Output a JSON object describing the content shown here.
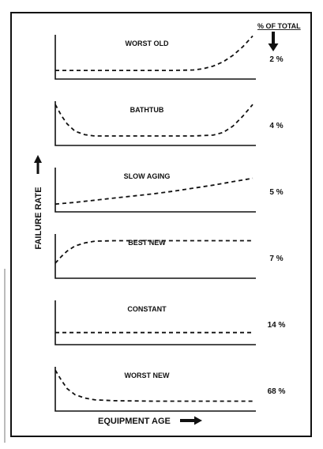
{
  "figure": {
    "ylabel": "FAILURE RATE",
    "xlabel": "EQUIPMENT AGE",
    "pct_header": "% OF TOTAL"
  },
  "chart_data": [
    {
      "type": "line",
      "title": "WORST OLD",
      "percent_label": "2 %",
      "percent_of_total": 2,
      "x": [
        0,
        10,
        20,
        30,
        40,
        50,
        60,
        70,
        75,
        80,
        85,
        90,
        95,
        100
      ],
      "y": [
        0.2,
        0.2,
        0.2,
        0.2,
        0.2,
        0.2,
        0.2,
        0.21,
        0.24,
        0.3,
        0.4,
        0.55,
        0.75,
        1.0
      ],
      "xlim": [
        0,
        100
      ],
      "ylim": [
        0,
        1.1
      ]
    },
    {
      "type": "line",
      "title": "BATHTUB",
      "percent_label": "4 %",
      "percent_of_total": 4,
      "x": [
        0,
        3,
        6,
        10,
        15,
        20,
        30,
        50,
        70,
        80,
        85,
        90,
        95,
        100
      ],
      "y": [
        0.95,
        0.7,
        0.5,
        0.33,
        0.25,
        0.22,
        0.22,
        0.22,
        0.22,
        0.24,
        0.3,
        0.45,
        0.68,
        0.95
      ],
      "xlim": [
        0,
        100
      ],
      "ylim": [
        0,
        1.1
      ]
    },
    {
      "type": "line",
      "title": "SLOW AGING",
      "percent_label": "5 %",
      "percent_of_total": 5,
      "x": [
        0,
        10,
        20,
        30,
        40,
        50,
        60,
        70,
        80,
        90,
        100
      ],
      "y": [
        0.18,
        0.22,
        0.27,
        0.32,
        0.37,
        0.42,
        0.48,
        0.55,
        0.62,
        0.7,
        0.78
      ],
      "xlim": [
        0,
        100
      ],
      "ylim": [
        0,
        1.1
      ]
    },
    {
      "type": "line",
      "title": "BEST NEW",
      "percent_label": "7 %",
      "percent_of_total": 7,
      "x": [
        0,
        3,
        6,
        10,
        15,
        20,
        30,
        50,
        70,
        100
      ],
      "y": [
        0.35,
        0.5,
        0.63,
        0.75,
        0.82,
        0.86,
        0.87,
        0.87,
        0.87,
        0.87
      ],
      "xlim": [
        0,
        100
      ],
      "ylim": [
        0,
        1.1
      ]
    },
    {
      "type": "line",
      "title": "CONSTANT",
      "percent_label": "14 %",
      "percent_of_total": 14,
      "x": [
        0,
        25,
        50,
        75,
        100
      ],
      "y": [
        0.28,
        0.28,
        0.28,
        0.28,
        0.28
      ],
      "xlim": [
        0,
        100
      ],
      "ylim": [
        0,
        1.1
      ]
    },
    {
      "type": "line",
      "title": "WORST NEW",
      "percent_label": "68 %",
      "percent_of_total": 68,
      "x": [
        0,
        3,
        6,
        10,
        15,
        20,
        30,
        50,
        70,
        100
      ],
      "y": [
        0.95,
        0.72,
        0.52,
        0.38,
        0.3,
        0.26,
        0.24,
        0.23,
        0.23,
        0.23
      ],
      "xlim": [
        0,
        100
      ],
      "ylim": [
        0,
        1.1
      ]
    }
  ]
}
